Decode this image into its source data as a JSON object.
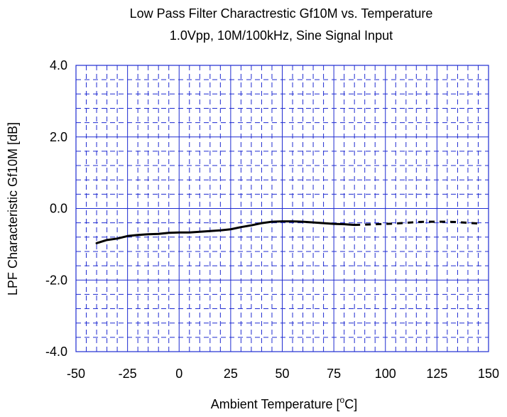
{
  "chart_data": {
    "type": "line",
    "title": "Low Pass Filter Charactrestic Gf10M vs. Temperature",
    "subtitle": "1.0Vpp, 10M/100kHz, Sine Signal Input",
    "xlabel": "Ambient Temperature [",
    "xlabel_sup": "o",
    "xlabel_unit": "C]",
    "ylabel": "LPF Characteristic Gf10M [dB]",
    "xlim": [
      -50,
      150
    ],
    "ylim": [
      -4.0,
      4.0
    ],
    "x_ticks": [
      "-50",
      "-25",
      "0",
      "25",
      "50",
      "75",
      "100",
      "125",
      "150"
    ],
    "y_ticks": [
      "-4.0",
      "-2.0",
      "0.0",
      "2.0",
      "4.0"
    ],
    "grid": true,
    "series": [
      {
        "style": "solid",
        "color": "#000000",
        "x": [
          -40,
          -35,
          -30,
          -25,
          -20,
          -15,
          -10,
          -5,
          0,
          5,
          10,
          15,
          20,
          25,
          30,
          35,
          40,
          45,
          50,
          55,
          60,
          65,
          70,
          75,
          80,
          85
        ],
        "y": [
          -0.97,
          -0.88,
          -0.84,
          -0.77,
          -0.74,
          -0.72,
          -0.71,
          -0.68,
          -0.67,
          -0.67,
          -0.65,
          -0.63,
          -0.61,
          -0.58,
          -0.52,
          -0.47,
          -0.41,
          -0.37,
          -0.36,
          -0.36,
          -0.37,
          -0.39,
          -0.41,
          -0.43,
          -0.44,
          -0.46
        ]
      },
      {
        "style": "dashed",
        "color": "#000000",
        "x": [
          85,
          90,
          95,
          100,
          105,
          110,
          115,
          120,
          125,
          130,
          135,
          140,
          145
        ],
        "y": [
          -0.46,
          -0.45,
          -0.44,
          -0.43,
          -0.42,
          -0.4,
          -0.38,
          -0.37,
          -0.37,
          -0.37,
          -0.38,
          -0.4,
          -0.42
        ]
      }
    ]
  }
}
